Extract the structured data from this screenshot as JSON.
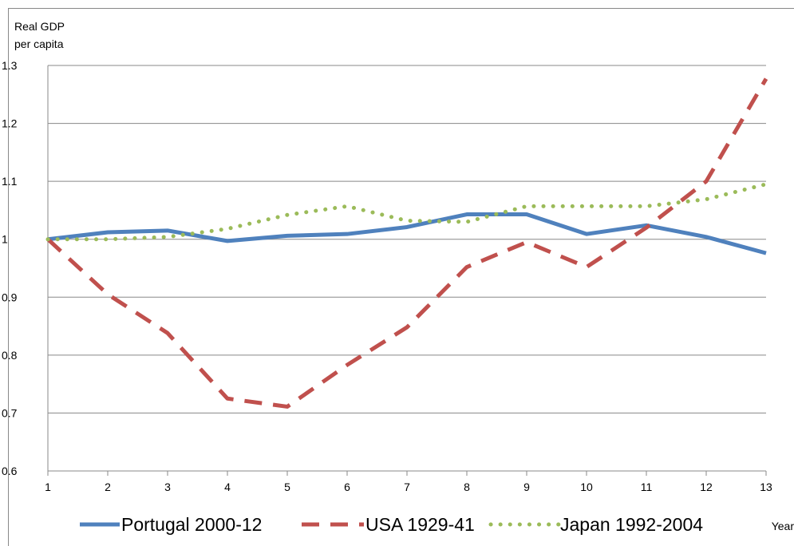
{
  "chart_data": {
    "type": "line",
    "y_label": "Real GDP per capita",
    "x_label": "Year",
    "x": [
      1,
      2,
      3,
      4,
      5,
      6,
      7,
      8,
      9,
      10,
      11,
      12,
      13
    ],
    "xlim": [
      1,
      13
    ],
    "xticks": [
      1,
      2,
      3,
      4,
      5,
      6,
      7,
      8,
      9,
      10,
      11,
      12,
      13
    ],
    "ylim": [
      0.6,
      1.3
    ],
    "yticks": [
      0.6,
      0.7,
      0.8,
      0.9,
      1,
      1.1,
      1.2,
      1.3
    ],
    "grid": true,
    "legend": "bottom",
    "series": [
      {
        "name": "Portugal 2000-12",
        "color": "#4f81bd",
        "style": "solid",
        "values": [
          1.0,
          1.012,
          1.015,
          0.997,
          1.006,
          1.009,
          1.021,
          1.043,
          1.043,
          1.009,
          1.024,
          1.004,
          0.976
        ]
      },
      {
        "name": "USA 1929-41",
        "color": "#c0504d",
        "style": "dashed",
        "values": [
          1.0,
          0.905,
          0.838,
          0.725,
          0.711,
          0.783,
          0.848,
          0.952,
          0.995,
          0.952,
          1.02,
          1.1,
          1.277
        ]
      },
      {
        "name": "Japan 1992-2004",
        "color": "#9bbb59",
        "style": "dotted",
        "values": [
          1.0,
          1.0,
          1.004,
          1.018,
          1.042,
          1.057,
          1.032,
          1.03,
          1.057,
          1.057,
          1.057,
          1.069,
          1.095
        ]
      }
    ]
  }
}
